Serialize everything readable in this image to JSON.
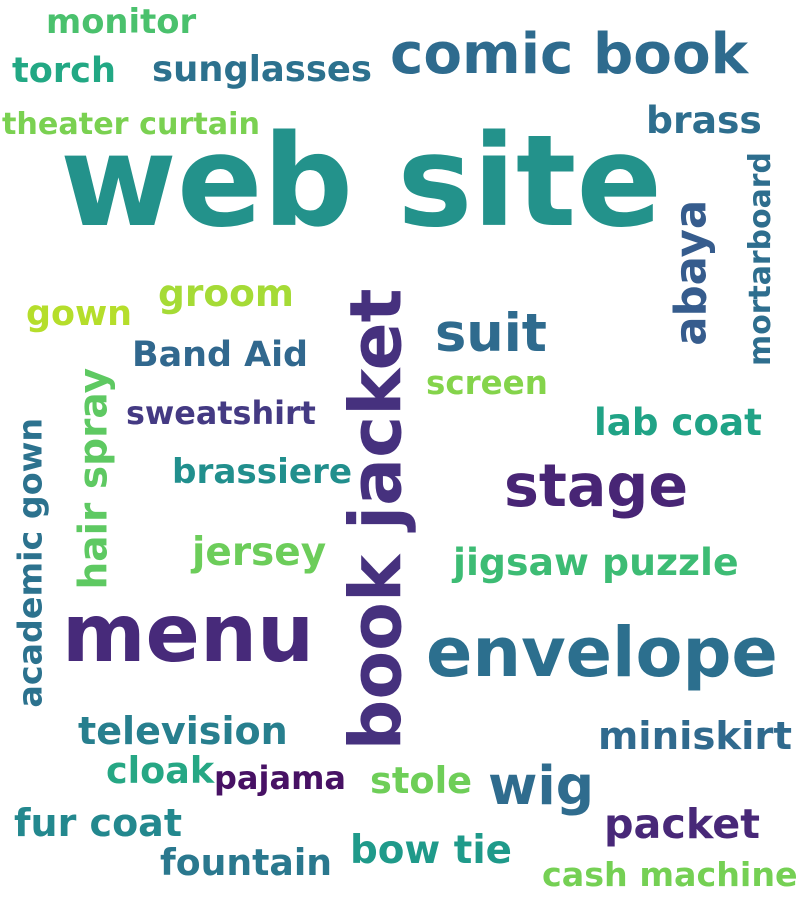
{
  "words": [
    {
      "text": "web site",
      "color": "#23928b",
      "orientation": "horizontal"
    },
    {
      "text": "book jacket",
      "color": "#46317e",
      "orientation": "vertical"
    },
    {
      "text": "menu",
      "color": "#472a7a",
      "orientation": "horizontal"
    },
    {
      "text": "envelope",
      "color": "#2c6f8e",
      "orientation": "horizontal"
    },
    {
      "text": "comic book",
      "color": "#2e6b8e",
      "orientation": "horizontal"
    },
    {
      "text": "stage",
      "color": "#482575",
      "orientation": "horizontal"
    },
    {
      "text": "wig",
      "color": "#2f6c8e",
      "orientation": "horizontal"
    },
    {
      "text": "suit",
      "color": "#2f6b8e",
      "orientation": "horizontal"
    },
    {
      "text": "abaya",
      "color": "#365c8d",
      "orientation": "vertical"
    },
    {
      "text": "packet",
      "color": "#482878",
      "orientation": "horizontal"
    },
    {
      "text": "television",
      "color": "#277f8e",
      "orientation": "horizontal"
    },
    {
      "text": "miniskirt",
      "color": "#306a8e",
      "orientation": "horizontal"
    },
    {
      "text": "fur coat",
      "color": "#23888e",
      "orientation": "horizontal"
    },
    {
      "text": "fountain",
      "color": "#2a788e",
      "orientation": "horizontal"
    },
    {
      "text": "bow tie",
      "color": "#1f9a8a",
      "orientation": "horizontal"
    },
    {
      "text": "jigsaw puzzle",
      "color": "#3dbc74",
      "orientation": "horizontal"
    },
    {
      "text": "lab coat",
      "color": "#20a386",
      "orientation": "horizontal"
    },
    {
      "text": "brass",
      "color": "#2e6e8e",
      "orientation": "horizontal"
    },
    {
      "text": "sunglasses",
      "color": "#2c718e",
      "orientation": "horizontal"
    },
    {
      "text": "Band Aid",
      "color": "#31688e",
      "orientation": "horizontal"
    },
    {
      "text": "sweatshirt",
      "color": "#443a83",
      "orientation": "horizontal"
    },
    {
      "text": "brassiere",
      "color": "#218f8d",
      "orientation": "horizontal"
    },
    {
      "text": "jersey",
      "color": "#6ccd5a",
      "orientation": "horizontal"
    },
    {
      "text": "hair spray",
      "color": "#5ec962",
      "orientation": "vertical"
    },
    {
      "text": "academic gown",
      "color": "#2c728e",
      "orientation": "vertical"
    },
    {
      "text": "mortarboard",
      "color": "#2e6e8e",
      "orientation": "vertical"
    },
    {
      "text": "groom",
      "color": "#a5db36",
      "orientation": "horizontal"
    },
    {
      "text": "gown",
      "color": "#b5de2b",
      "orientation": "horizontal"
    },
    {
      "text": "screen",
      "color": "#84d44b",
      "orientation": "horizontal"
    },
    {
      "text": "theater curtain",
      "color": "#7ad151",
      "orientation": "horizontal"
    },
    {
      "text": "monitor",
      "color": "#4ac16d",
      "orientation": "horizontal"
    },
    {
      "text": "torch",
      "color": "#22a884",
      "orientation": "horizontal"
    },
    {
      "text": "cloak",
      "color": "#26a784",
      "orientation": "horizontal"
    },
    {
      "text": "pajama",
      "color": "#471164",
      "orientation": "horizontal"
    },
    {
      "text": "stole",
      "color": "#6ece58",
      "orientation": "horizontal"
    },
    {
      "text": "cash machine",
      "color": "#75d054",
      "orientation": "horizontal"
    }
  ]
}
